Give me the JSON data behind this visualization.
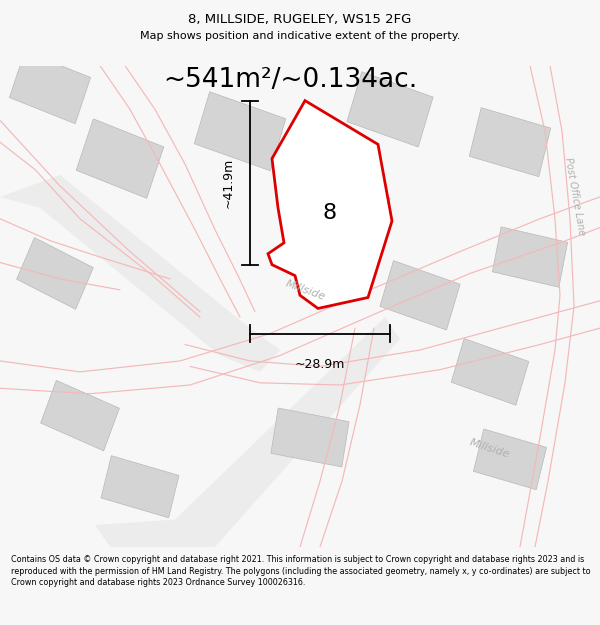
{
  "title": "8, MILLSIDE, RUGELEY, WS15 2FG",
  "subtitle": "Map shows position and indicative extent of the property.",
  "area_text": "~541m²/~0.134ac.",
  "label_8": "8",
  "dim_vertical": "~41.9m",
  "dim_horizontal": "~28.9m",
  "road_label1": "Millside",
  "road_label2": "Millside",
  "road_label3": "Post Office Lane",
  "footer": "Contains OS data © Crown copyright and database right 2021. This information is subject to Crown copyright and database rights 2023 and is reproduced with the permission of HM Land Registry. The polygons (including the associated geometry, namely x, y co-ordinates) are subject to Crown copyright and database rights 2023 Ordnance Survey 100026316.",
  "bg_color": "#f7f7f7",
  "map_bg": "#ffffff",
  "property_fill": "#f0f0f0",
  "property_edge": "#dd0000",
  "building_fill": "#d4d4d4",
  "building_stroke": "#b8b8b8",
  "pink_road_color": "#f5b8b8",
  "road_area_color": "#ececec",
  "dim_color": "#111111",
  "text_color": "#333333",
  "gray_label_color": "#b0b0b0",
  "title_fontsize": 9.5,
  "subtitle_fontsize": 8,
  "area_fontsize": 19,
  "dim_fontsize": 9,
  "label8_fontsize": 16,
  "road_label_fontsize": 8,
  "footer_fontsize": 5.8
}
